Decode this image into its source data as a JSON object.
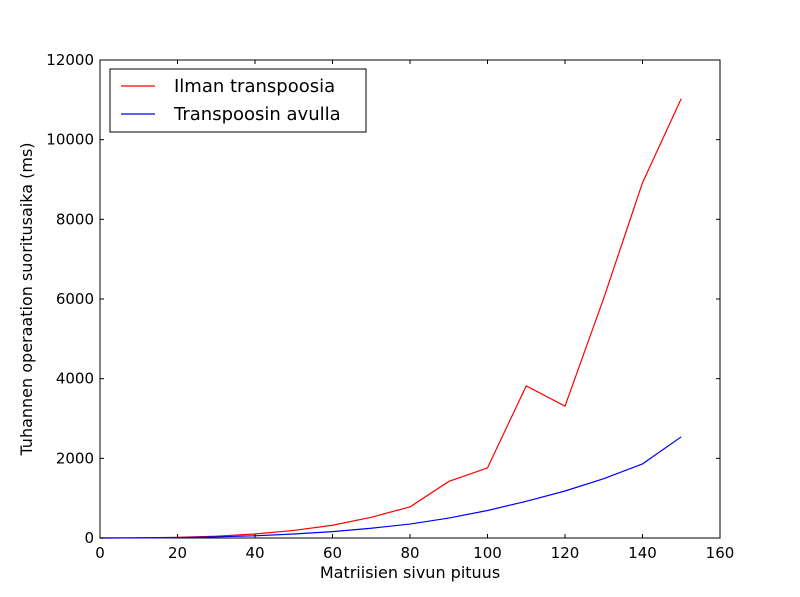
{
  "chart_data": {
    "type": "line",
    "title": "",
    "xlabel": "Matriisien sivun pituus",
    "ylabel": "Tuhannen operaation suoritusaika (ms)",
    "xlim": [
      0,
      160
    ],
    "ylim": [
      0,
      12000
    ],
    "xticks": [
      "0",
      "20",
      "40",
      "60",
      "80",
      "100",
      "120",
      "140",
      "160"
    ],
    "yticks": [
      "0",
      "2000",
      "4000",
      "6000",
      "8000",
      "10000",
      "12000"
    ],
    "grid": false,
    "legend_position": "top-left",
    "x": [
      0,
      10,
      20,
      30,
      40,
      50,
      60,
      70,
      80,
      90,
      100,
      110,
      120,
      130,
      140,
      150
    ],
    "series": [
      {
        "name": "Ilman transpoosia",
        "color": "#ff0000",
        "values": [
          0,
          5,
          15,
          45,
          100,
          190,
          320,
          520,
          780,
          1420,
          1760,
          3820,
          3310,
          6020,
          8920,
          11030
        ]
      },
      {
        "name": "Transpoosin avulla",
        "color": "#0000ff",
        "values": [
          0,
          3,
          10,
          30,
          55,
          100,
          160,
          245,
          350,
          500,
          690,
          920,
          1180,
          1490,
          1860,
          2540
        ]
      }
    ]
  }
}
